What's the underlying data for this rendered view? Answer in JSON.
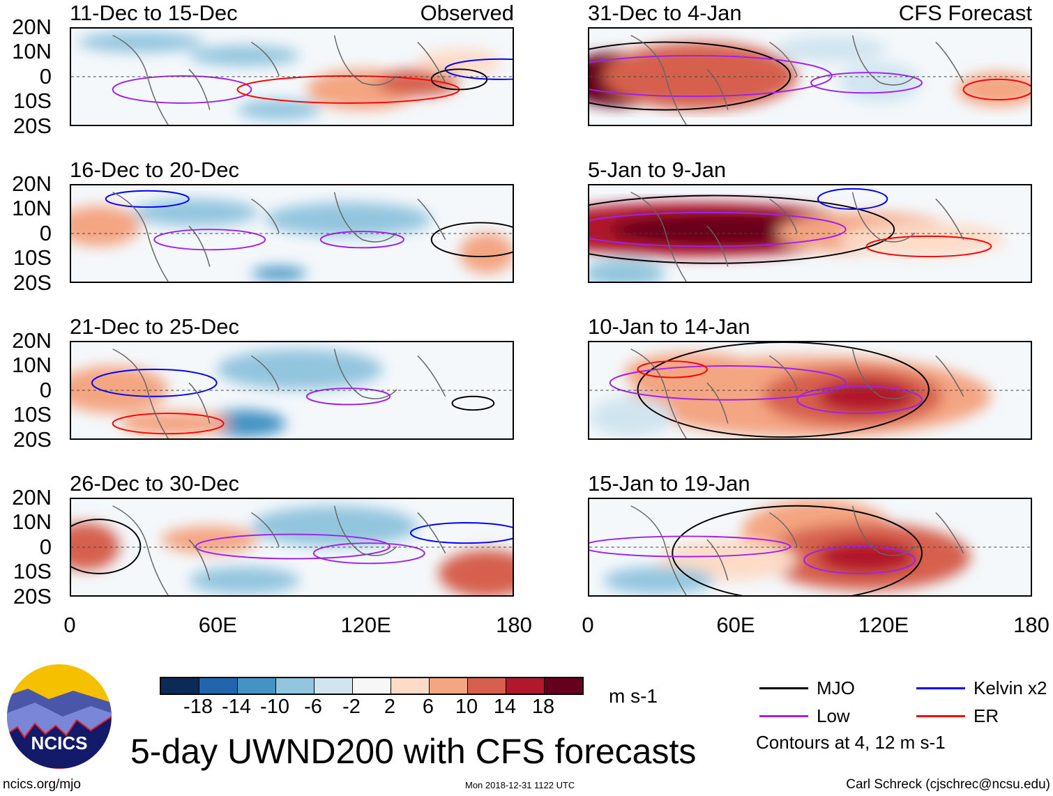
{
  "title": "5-day UWND200 with CFS forecasts",
  "units": "m s-1",
  "observed_label": "Observed",
  "forecast_label": "CFS Forecast",
  "lat_labels": [
    "20N",
    "10N",
    "0",
    "10S",
    "20S"
  ],
  "lon_labels": [
    "0",
    "60E",
    "120E",
    "180"
  ],
  "panels_observed": [
    "11-Dec to 15-Dec",
    "16-Dec to 20-Dec",
    "21-Dec to 25-Dec",
    "26-Dec to 30-Dec"
  ],
  "panels_forecast": [
    "31-Dec to 4-Jan",
    "5-Jan to 9-Jan",
    "10-Jan to 14-Jan",
    "15-Jan to 19-Jan"
  ],
  "colorbar": {
    "colors": [
      "#0b2a55",
      "#2166ac",
      "#4393c3",
      "#92c5de",
      "#d1e5f0",
      "#f7f7f7",
      "#fddbc7",
      "#f4a582",
      "#d6604d",
      "#b2182b",
      "#67001f"
    ],
    "labels": [
      "-18",
      "-14",
      "-10",
      "-6",
      "-2",
      "2",
      "6",
      "10",
      "14",
      "18"
    ]
  },
  "legend": [
    {
      "label": "MJO",
      "color": "#000000"
    },
    {
      "label": "Kelvin x2",
      "color": "#0000ff"
    },
    {
      "label": "Low",
      "color": "#a020f0"
    },
    {
      "label": "ER",
      "color": "#ff0000"
    }
  ],
  "contour_note": "Contours at 4, 12 m s-1",
  "logo_text": "NCICS",
  "footer": {
    "url": "ncics.org/mjo",
    "timestamp": "Mon 2018-12-31 1122 UTC",
    "author": "Carl Schreck (cjschrec@ncsu.edu)"
  }
}
